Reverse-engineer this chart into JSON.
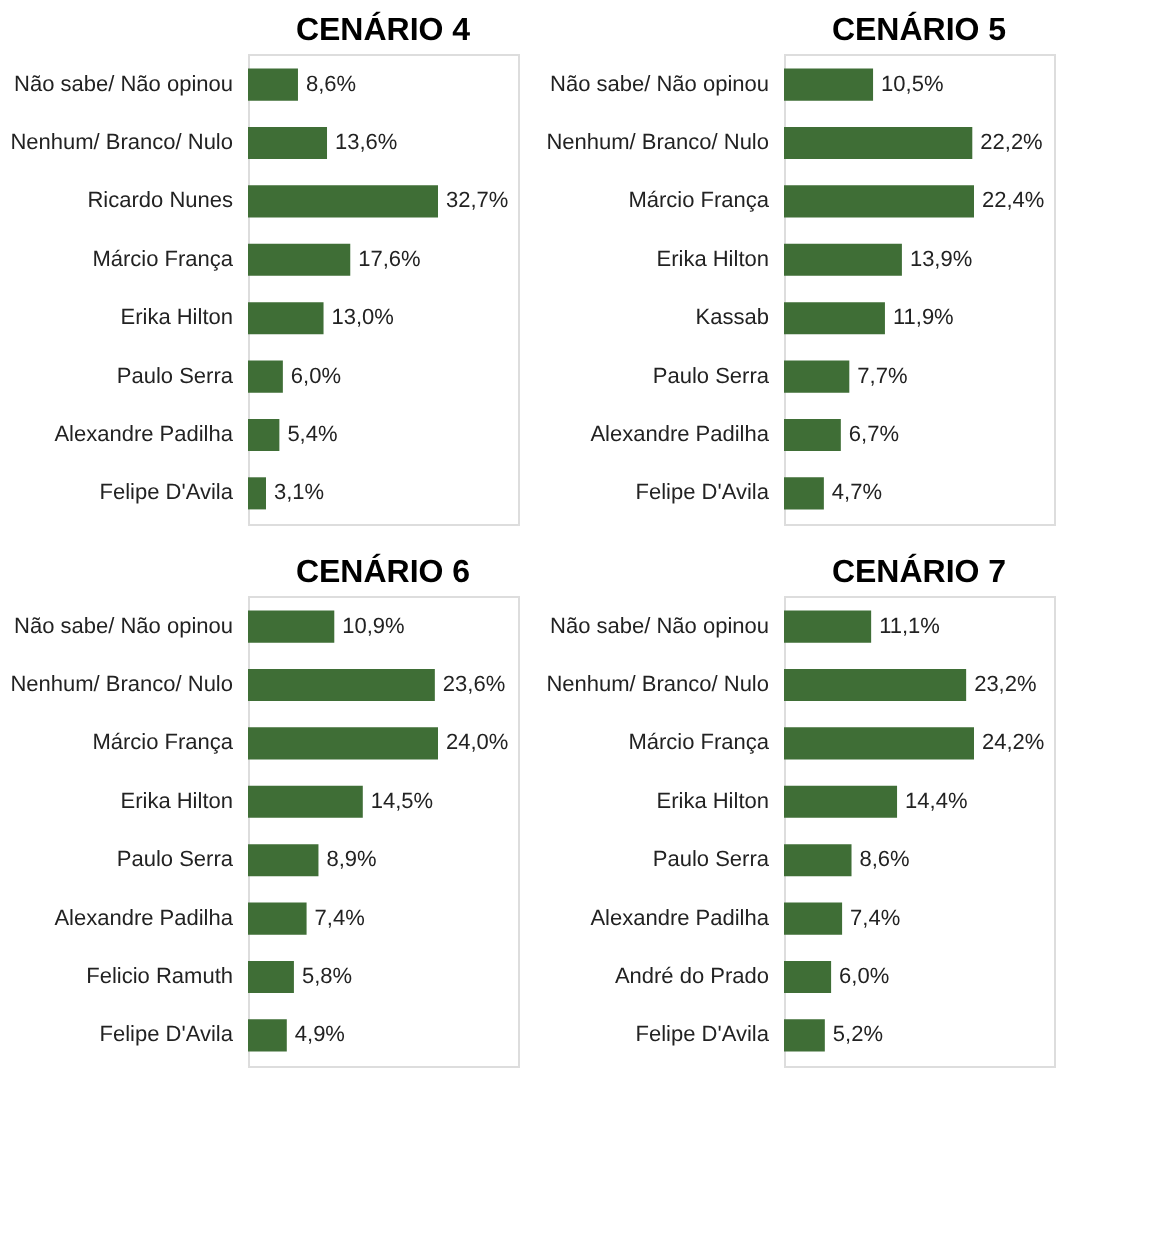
{
  "chart_data": [
    {
      "type": "bar",
      "orientation": "horizontal",
      "title": "CENÁRIO 4",
      "categories": [
        "Não sabe/ Não opinou",
        "Nenhum/ Branco/ Nulo",
        "Ricardo Nunes",
        "Márcio França",
        "Erika Hilton",
        "Paulo Serra",
        "Alexandre Padilha",
        "Felipe D'Avila"
      ],
      "values": [
        8.6,
        13.6,
        32.7,
        17.6,
        13.0,
        6.0,
        5.4,
        3.1
      ],
      "value_labels": [
        "8,6%",
        "13,6%",
        "32,7%",
        "17,6%",
        "13,0%",
        "6,0%",
        "5,4%",
        "3,1%"
      ],
      "color": "#3f6e36"
    },
    {
      "type": "bar",
      "orientation": "horizontal",
      "title": "CENÁRIO 5",
      "categories": [
        "Não sabe/ Não opinou",
        "Nenhum/ Branco/ Nulo",
        "Márcio França",
        "Erika Hilton",
        "Kassab",
        "Paulo Serra",
        "Alexandre Padilha",
        "Felipe D'Avila"
      ],
      "values": [
        10.5,
        22.2,
        22.4,
        13.9,
        11.9,
        7.7,
        6.7,
        4.7
      ],
      "value_labels": [
        "10,5%",
        "22,2%",
        "22,4%",
        "13,9%",
        "11,9%",
        "7,7%",
        "6,7%",
        "4,7%"
      ],
      "color": "#3f6e36"
    },
    {
      "type": "bar",
      "orientation": "horizontal",
      "title": "CENÁRIO 6",
      "categories": [
        "Não sabe/ Não opinou",
        "Nenhum/ Branco/ Nulo",
        "Márcio França",
        "Erika Hilton",
        "Paulo Serra",
        "Alexandre Padilha",
        "Felicio Ramuth",
        "Felipe D'Avila"
      ],
      "values": [
        10.9,
        23.6,
        24.0,
        14.5,
        8.9,
        7.4,
        5.8,
        4.9
      ],
      "value_labels": [
        "10,9%",
        "23,6%",
        "24,0%",
        "14,5%",
        "8,9%",
        "7,4%",
        "5,8%",
        "4,9%"
      ],
      "color": "#3f6e36"
    },
    {
      "type": "bar",
      "orientation": "horizontal",
      "title": "CENÁRIO 7",
      "categories": [
        "Não sabe/ Não opinou",
        "Nenhum/ Branco/ Nulo",
        "Márcio França",
        "Erika Hilton",
        "Paulo Serra",
        "Alexandre Padilha",
        "André do Prado",
        "Felipe D'Avila"
      ],
      "values": [
        11.1,
        23.2,
        24.2,
        14.4,
        8.6,
        7.4,
        6.0,
        5.2
      ],
      "value_labels": [
        "11,1%",
        "23,2%",
        "24,2%",
        "14,4%",
        "8,6%",
        "7,4%",
        "6,0%",
        "5,2%"
      ],
      "color": "#3f6e36"
    }
  ]
}
